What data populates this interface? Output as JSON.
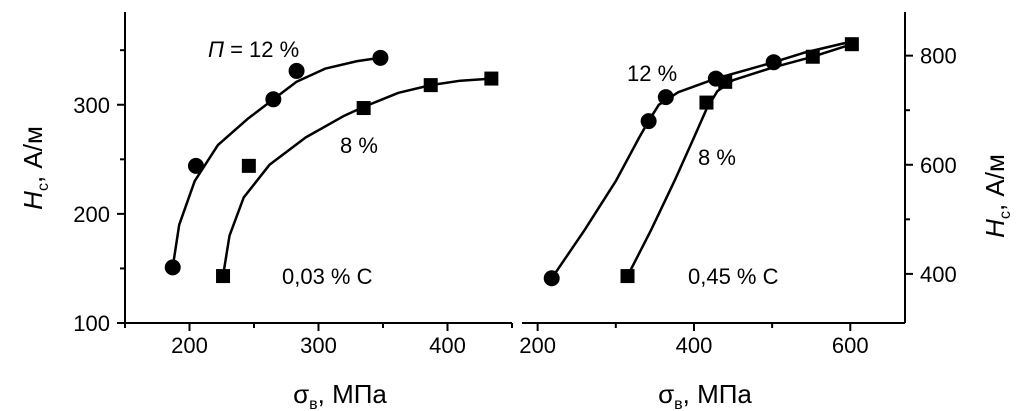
{
  "chart_data": [
    {
      "type": "scatter",
      "panel": "left",
      "xlim": [
        150,
        450
      ],
      "ylim": [
        100,
        385
      ],
      "x_ticks": [
        200,
        300,
        400
      ],
      "y_ticks": [
        100,
        200,
        300
      ],
      "grid": false,
      "xlabel": {
        "main": "σ",
        "sub": "в",
        "rest": ", МПа"
      },
      "ylabel": {
        "main": "H",
        "sub": "c",
        "rest": ", А/м"
      },
      "annotations": [
        {
          "id": "p12",
          "prefix": "П",
          "text": " = 12 %"
        },
        {
          "id": "p8",
          "prefix": "",
          "text": "8 %"
        },
        {
          "id": "carbon",
          "prefix": "",
          "text": "0,03 % С"
        }
      ],
      "series": [
        {
          "marker": "circle",
          "x": [
            187,
            205,
            265,
            283,
            348
          ],
          "y": [
            151,
            244,
            305,
            331,
            343
          ],
          "curve": [
            [
              187,
              151
            ],
            [
              192,
              190
            ],
            [
              204,
              230
            ],
            [
              222,
              263
            ],
            [
              245,
              287
            ],
            [
              265,
              305
            ],
            [
              283,
              321
            ],
            [
              305,
              333
            ],
            [
              330,
              340
            ],
            [
              348,
              343
            ]
          ]
        },
        {
          "marker": "square",
          "x": [
            226,
            246,
            335,
            387,
            434
          ],
          "y": [
            143,
            244,
            297,
            318,
            324
          ],
          "curve": [
            [
              226,
              143
            ],
            [
              231,
              180
            ],
            [
              242,
              215
            ],
            [
              262,
              245
            ],
            [
              290,
              270
            ],
            [
              320,
              290
            ],
            [
              335,
              298
            ],
            [
              362,
              311
            ],
            [
              387,
              318
            ],
            [
              410,
              322
            ],
            [
              434,
              324
            ]
          ]
        }
      ]
    },
    {
      "type": "scatter",
      "panel": "right",
      "xlim": [
        180,
        670
      ],
      "ylim": [
        310,
        880
      ],
      "x_ticks": [
        200,
        400,
        600
      ],
      "y_ticks": [
        400,
        600,
        800
      ],
      "grid": false,
      "xlabel": {
        "main": "σ",
        "sub": "в",
        "rest": ", МПа"
      },
      "ylabel": {
        "main": "H",
        "sub": "c",
        "rest": ", А/м"
      },
      "annotations": [
        {
          "id": "p12",
          "prefix": "",
          "text": "12 %"
        },
        {
          "id": "p8",
          "prefix": "",
          "text": "8 %"
        },
        {
          "id": "carbon",
          "prefix": "",
          "text": "0,45 % С"
        }
      ],
      "series": [
        {
          "marker": "circle",
          "x": [
            218,
            342,
            364,
            428,
            502
          ],
          "y": [
            392,
            680,
            724,
            758,
            788
          ],
          "curve": [
            [
              218,
              392
            ],
            [
              260,
              480
            ],
            [
              300,
              570
            ],
            [
              330,
              650
            ],
            [
              342,
              680
            ],
            [
              355,
              710
            ],
            [
              380,
              733
            ],
            [
              428,
              758
            ],
            [
              470,
              775
            ],
            [
              502,
              788
            ],
            [
              540,
              805
            ],
            [
              590,
              822
            ],
            [
              602,
              825
            ]
          ]
        },
        {
          "marker": "square",
          "x": [
            315,
            416,
            440,
            552,
            602
          ],
          "y": [
            396,
            714,
            752,
            798,
            821
          ],
          "curve": [
            [
              315,
              396
            ],
            [
              345,
              480
            ],
            [
              375,
              570
            ],
            [
              400,
              650
            ],
            [
              416,
              702
            ],
            [
              430,
              735
            ],
            [
              450,
              755
            ],
            [
              500,
              778
            ],
            [
              552,
              798
            ],
            [
              602,
              821
            ]
          ]
        }
      ]
    }
  ]
}
